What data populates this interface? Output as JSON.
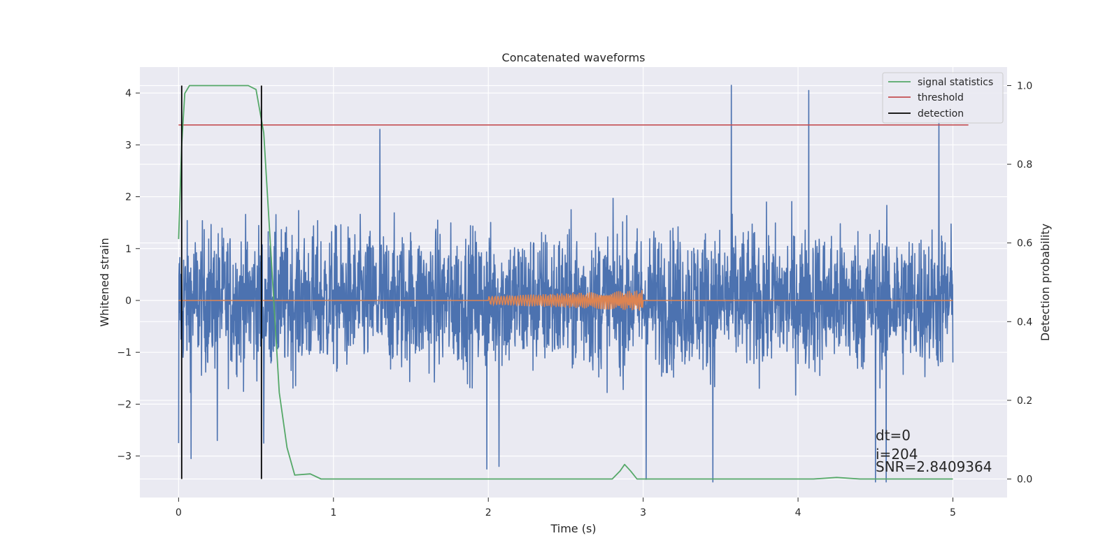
{
  "chart_data": {
    "type": "line",
    "title": "Concatenated waveforms",
    "xlabel": "Time (s)",
    "ylabel": "Whitened strain",
    "y2label": "Detection probability",
    "xlim": [
      -0.25,
      5.35
    ],
    "ylim": [
      -3.8,
      4.5
    ],
    "y2lim": [
      -0.047,
      1.047
    ],
    "x_ticks": [
      0,
      1,
      2,
      3,
      4,
      5
    ],
    "x_tick_labels": [
      "0",
      "1",
      "2",
      "3",
      "4",
      "5"
    ],
    "y_ticks": [
      -3,
      -2,
      -1,
      0,
      1,
      2,
      3,
      4
    ],
    "y_tick_labels": [
      "−3",
      "−2",
      "−1",
      "0",
      "1",
      "2",
      "3",
      "4"
    ],
    "y2_ticks": [
      0,
      0.2,
      0.4,
      0.6,
      0.8,
      1.0
    ],
    "y2_tick_labels": [
      "0.0",
      "0.2",
      "0.4",
      "0.6",
      "0.8",
      "1.0"
    ],
    "grid": true,
    "legend_position": "top-right",
    "colors": {
      "strain": "#4c72b0",
      "injection": "#dd8452",
      "signal_statistics": "#55a868",
      "threshold": "#c44e52",
      "detection": "#000000",
      "plot_bg": "#eaeaf2",
      "grid": "#ffffff"
    },
    "series": [
      {
        "name": "",
        "role": "whitened strain noise",
        "axis": "left",
        "x_range": [
          0,
          5
        ],
        "spike_points": [
          [
            0.0,
            -2.75
          ],
          [
            0.08,
            -3.05
          ],
          [
            0.25,
            -2.7
          ],
          [
            0.55,
            -2.75
          ],
          [
            1.3,
            3.3
          ],
          [
            1.99,
            -3.25
          ],
          [
            2.07,
            -3.2
          ],
          [
            3.02,
            -3.45
          ],
          [
            3.45,
            -3.5
          ],
          [
            3.57,
            4.15
          ],
          [
            4.07,
            4.05
          ],
          [
            4.5,
            -3.5
          ],
          [
            4.57,
            -3.5
          ],
          [
            4.91,
            3.5
          ]
        ]
      },
      {
        "name": "",
        "role": "injected chirp",
        "axis": "left",
        "x_range": [
          2.0,
          3.0
        ],
        "start_amplitude": 0.08,
        "end_amplitude": 0.2
      },
      {
        "name": "signal statistics",
        "axis": "right",
        "points": [
          [
            0.0,
            0.61
          ],
          [
            0.02,
            0.85
          ],
          [
            0.04,
            0.98
          ],
          [
            0.07,
            1.0
          ],
          [
            0.45,
            1.0
          ],
          [
            0.5,
            0.99
          ],
          [
            0.55,
            0.88
          ],
          [
            0.6,
            0.55
          ],
          [
            0.65,
            0.22
          ],
          [
            0.7,
            0.08
          ],
          [
            0.75,
            0.01
          ],
          [
            0.85,
            0.013
          ],
          [
            0.92,
            0.0
          ],
          [
            2.8,
            0.0
          ],
          [
            2.85,
            0.02
          ],
          [
            2.88,
            0.037
          ],
          [
            2.92,
            0.02
          ],
          [
            2.96,
            0.0
          ],
          [
            4.1,
            0.0
          ],
          [
            4.25,
            0.004
          ],
          [
            4.4,
            0.0
          ],
          [
            5.0,
            0.0
          ]
        ]
      },
      {
        "name": "threshold",
        "axis": "right",
        "x_range": [
          0,
          5.1
        ],
        "value": 0.9
      },
      {
        "name": "detection",
        "axis": "right",
        "x_values": [
          0.02,
          0.535
        ],
        "y_range": [
          0,
          1.0
        ]
      }
    ],
    "annotations": [
      "dt=0",
      "i=204",
      "SNR=2.8409364"
    ]
  }
}
